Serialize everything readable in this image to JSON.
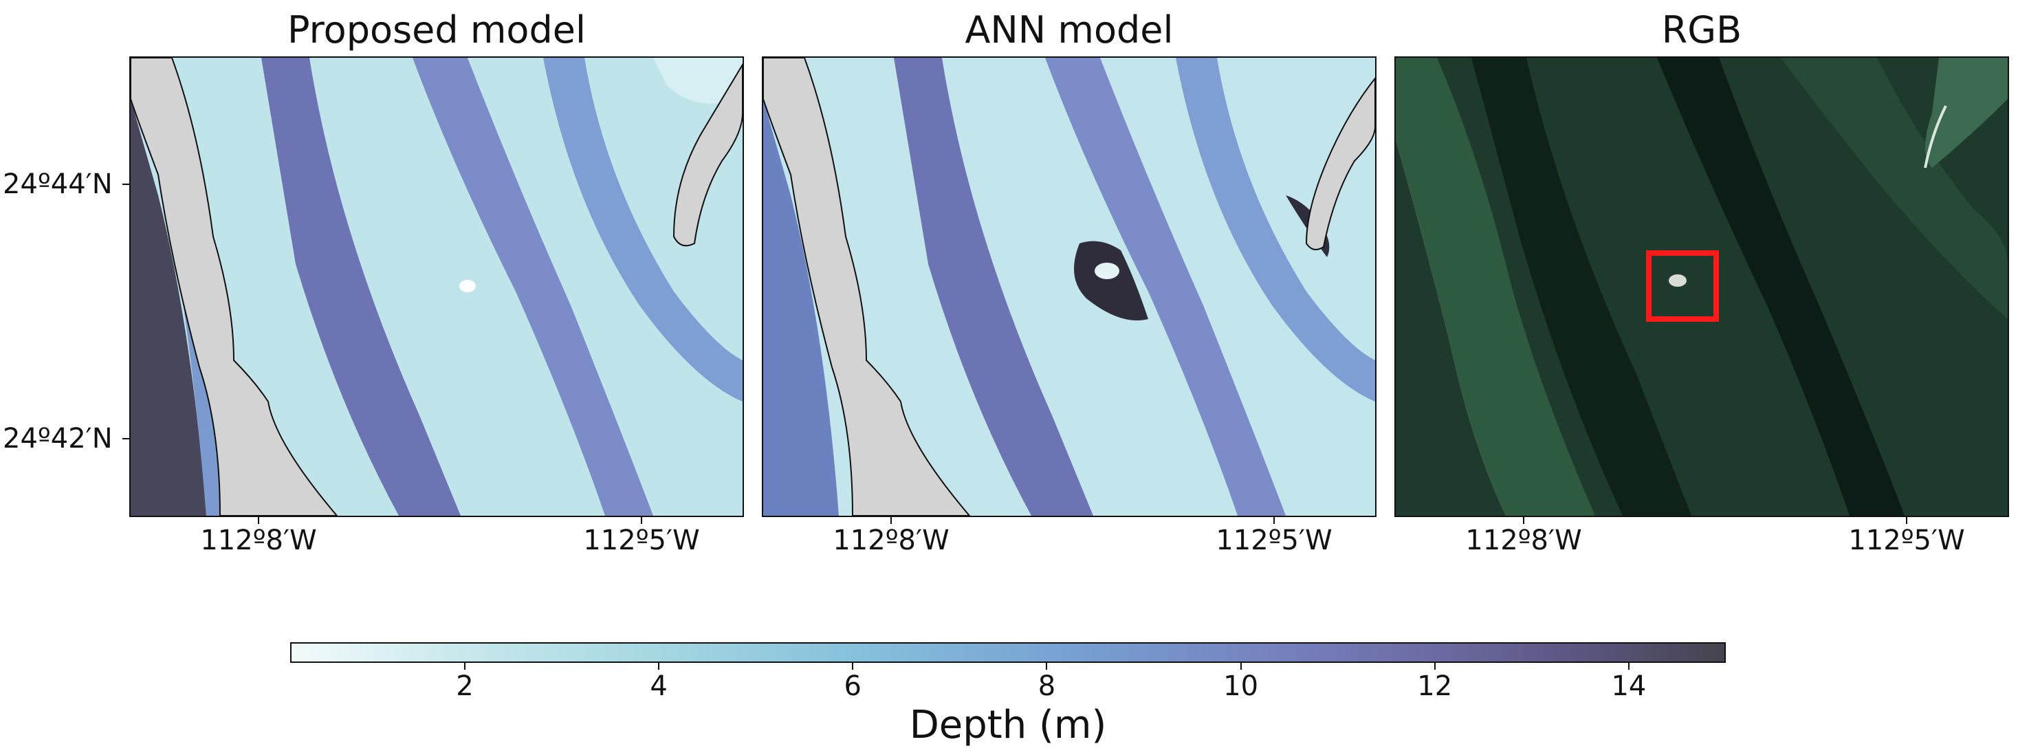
{
  "panels": [
    {
      "title": "Proposed model"
    },
    {
      "title": "ANN model"
    },
    {
      "title": "RGB"
    }
  ],
  "axes": {
    "y_ticks": [
      "24º44′N",
      "24º42′N"
    ],
    "x_ticks": [
      "112º8′W",
      "112º5′W"
    ]
  },
  "colorbar": {
    "label": "Depth (m)",
    "ticks": [
      "2",
      "4",
      "6",
      "8",
      "10",
      "12",
      "14"
    ],
    "range": [
      0.2,
      15
    ],
    "colors": [
      "#f2fbfb",
      "#a6d8e2",
      "#769fd2",
      "#6c6aa2",
      "#45444e"
    ]
  },
  "highlight_color": "#ff1a1a"
}
